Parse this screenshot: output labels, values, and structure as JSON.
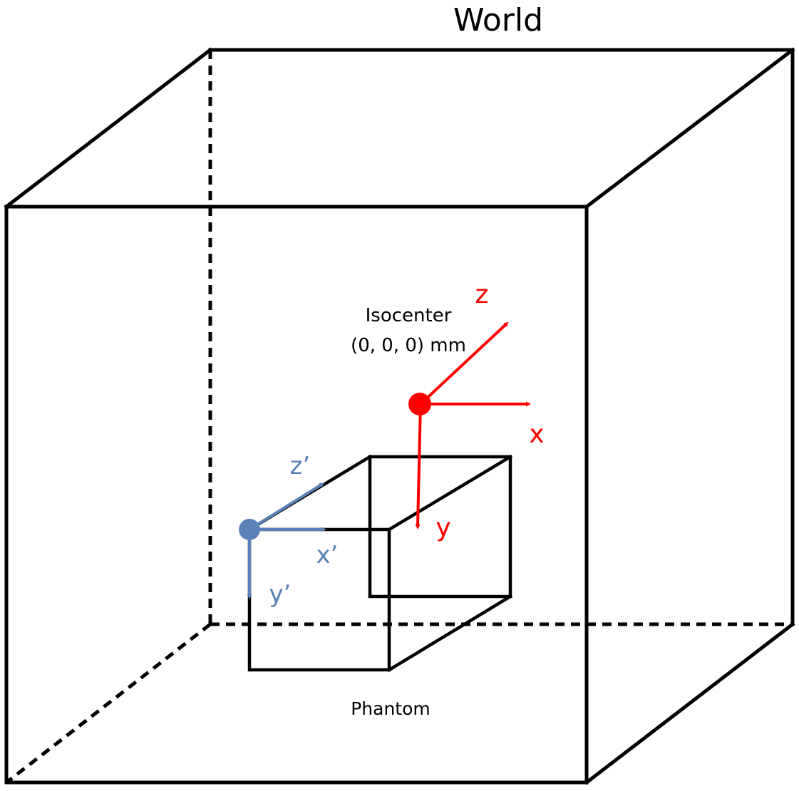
{
  "world": {
    "title": "World"
  },
  "isocenter": {
    "label": "Isocenter",
    "coordinates": "(0, 0, 0) mm",
    "color": "#ff0000",
    "axes": {
      "x": "x",
      "y": "y",
      "z": "z"
    }
  },
  "phantom": {
    "label": "Phantom",
    "color": "#5b82b8",
    "axes": {
      "x": "x’",
      "y": "y’",
      "z": "z’"
    }
  }
}
